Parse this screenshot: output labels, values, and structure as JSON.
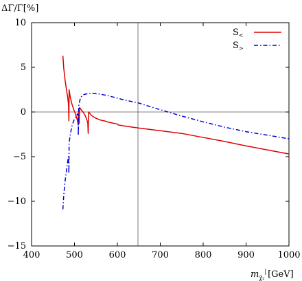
{
  "chart_data": {
    "type": "line",
    "ylabel": "ΔΓ/Γ[%]",
    "xlabel": {
      "symbol": "m",
      "subscript": "χ̃₂",
      "superscript": "|",
      "unit": "[GeV]"
    },
    "xlim": [
      400,
      1000
    ],
    "ylim": [
      -15,
      10
    ],
    "x_ticks": [
      400,
      500,
      600,
      700,
      800,
      900,
      1000
    ],
    "x_tick_labels": [
      "400",
      "500",
      "600",
      "700",
      "800",
      "900",
      "1000"
    ],
    "y_ticks": [
      -15,
      -10,
      -5,
      0,
      5,
      10
    ],
    "y_tick_labels": [
      "−15",
      "−10",
      "−5",
      "0",
      "5",
      "10"
    ],
    "reference_lines": {
      "horizontal_y": 0,
      "vertical_x": 648
    },
    "grid": false,
    "legend_placement": "top-right",
    "series": [
      {
        "name": "S<",
        "legend_base": "S",
        "legend_sub": "<",
        "color": "#e00000",
        "style": "solid",
        "points": [
          [
            473,
            6.3
          ],
          [
            475,
            4.9
          ],
          [
            478,
            3.6
          ],
          [
            481,
            2.6
          ],
          [
            484,
            1.7
          ],
          [
            486,
            0.9
          ],
          [
            487,
            -1.0
          ],
          [
            487.5,
            2.5
          ],
          [
            490,
            1.7
          ],
          [
            494,
            0.9
          ],
          [
            498,
            0.3
          ],
          [
            503,
            -0.3
          ],
          [
            506,
            -0.8
          ],
          [
            508,
            -1.2
          ],
          [
            509,
            -1.4
          ],
          [
            509.5,
            0.1
          ],
          [
            511,
            -1.3
          ],
          [
            512,
            0.5
          ],
          [
            515,
            0.3
          ],
          [
            520,
            0.0
          ],
          [
            525,
            -0.4
          ],
          [
            529,
            -0.9
          ],
          [
            531,
            -1.2
          ],
          [
            532,
            -2.4
          ],
          [
            533,
            0.0
          ],
          [
            540,
            -0.4
          ],
          [
            550,
            -0.7
          ],
          [
            560,
            -0.9
          ],
          [
            570,
            -1.0
          ],
          [
            580,
            -1.15
          ],
          [
            590,
            -1.25
          ],
          [
            600,
            -1.35
          ],
          [
            602,
            -1.45
          ],
          [
            620,
            -1.6
          ],
          [
            650,
            -1.8
          ],
          [
            700,
            -2.1
          ],
          [
            750,
            -2.4
          ],
          [
            800,
            -2.85
          ],
          [
            850,
            -3.3
          ],
          [
            900,
            -3.8
          ],
          [
            950,
            -4.25
          ],
          [
            1000,
            -4.7
          ]
        ]
      },
      {
        "name": "S>",
        "legend_base": "S",
        "legend_sub": ">",
        "color": "#0000dd",
        "style": "dash-dot",
        "points": [
          [
            473,
            -10.9
          ],
          [
            475,
            -9.3
          ],
          [
            478,
            -7.8
          ],
          [
            481,
            -6.7
          ],
          [
            483,
            -5.9
          ],
          [
            485,
            -5.3
          ],
          [
            486,
            -5.0
          ],
          [
            487,
            -6.9
          ],
          [
            487.5,
            -3.5
          ],
          [
            490,
            -2.6
          ],
          [
            494,
            -1.6
          ],
          [
            498,
            -1.0
          ],
          [
            502,
            -0.6
          ],
          [
            506,
            -0.3
          ],
          [
            508,
            -0.2
          ],
          [
            509,
            -2.6
          ],
          [
            510,
            0.7
          ],
          [
            513,
            1.4
          ],
          [
            517,
            1.8
          ],
          [
            522,
            1.95
          ],
          [
            530,
            2.05
          ],
          [
            540,
            2.1
          ],
          [
            550,
            2.05
          ],
          [
            560,
            2.0
          ],
          [
            580,
            1.8
          ],
          [
            600,
            1.55
          ],
          [
            620,
            1.3
          ],
          [
            650,
            1.0
          ],
          [
            700,
            0.25
          ],
          [
            750,
            -0.45
          ],
          [
            800,
            -1.1
          ],
          [
            850,
            -1.7
          ],
          [
            900,
            -2.2
          ],
          [
            950,
            -2.6
          ],
          [
            1000,
            -3.0
          ]
        ]
      }
    ]
  }
}
